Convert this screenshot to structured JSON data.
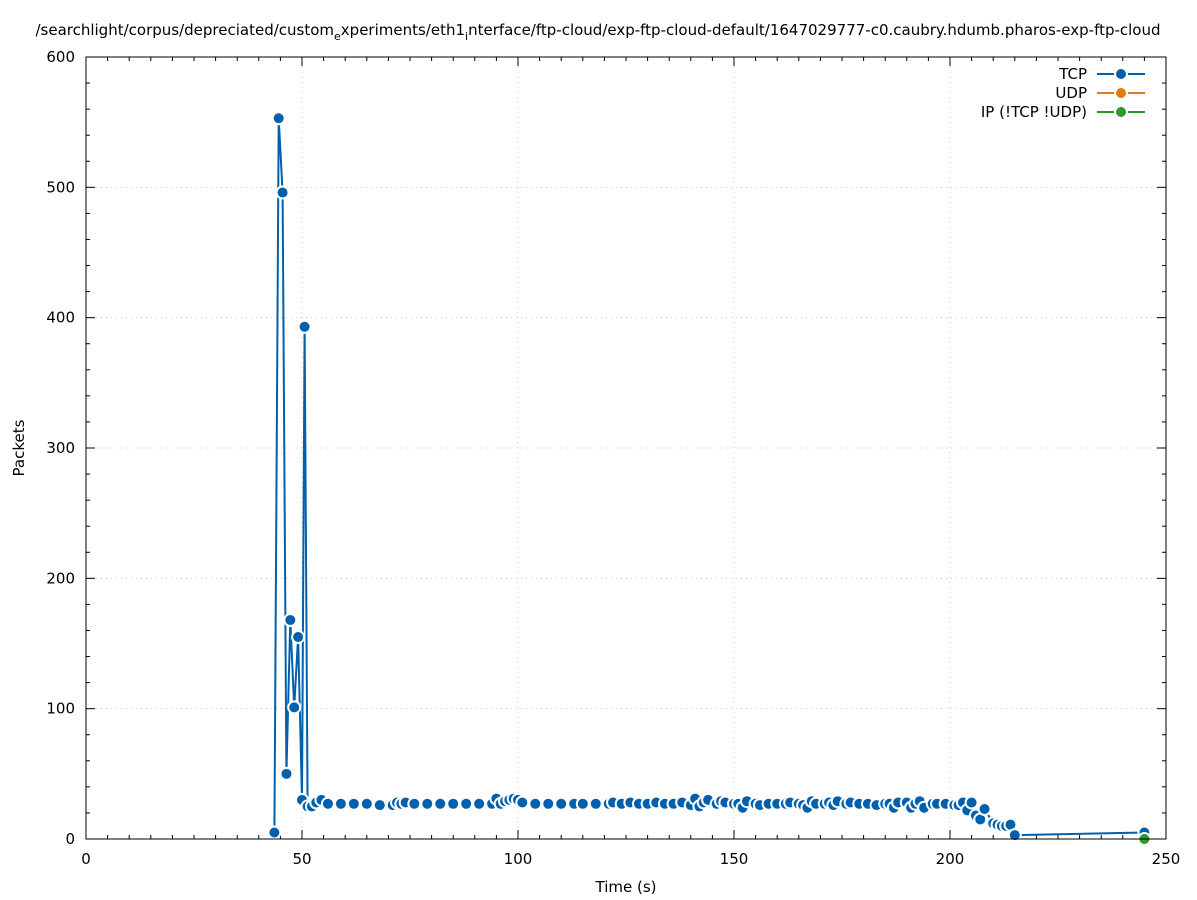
{
  "chart_data": {
    "type": "line",
    "title": "/searchlight/corpus/depreciated/custom_experiments/eth1_interface/ftp-cloud/exp-ftp-cloud-default/1647029777-c0.caubry.hdumb.pharos-exp-ftp-cloud",
    "title_parts": {
      "p1": "/searchlight/corpus/depreciated/custom",
      "s1": "e",
      "p2": "xperiments/eth1",
      "s2": "i",
      "p3": "nterface/ftp-cloud/exp-ftp-cloud-default/1647029777-c0.caubry.hdumb.pharos-exp-ftp-cloud"
    },
    "xlabel": "Time (s)",
    "ylabel": "Packets",
    "xlim": [
      0,
      250
    ],
    "ylim": [
      0,
      600
    ],
    "xticks": [
      "0",
      "50",
      "100",
      "150",
      "200",
      "250"
    ],
    "yticks": [
      "0",
      "100",
      "200",
      "300",
      "400",
      "500",
      "600"
    ],
    "grid": true,
    "legend_position": "top-right",
    "series": [
      {
        "name": "TCP",
        "color": "#0060ad",
        "points": [
          [
            43.6,
            5
          ],
          [
            44.6,
            553
          ],
          [
            45.5,
            496
          ],
          [
            46.4,
            50
          ],
          [
            47.3,
            168
          ],
          [
            48.2,
            101
          ],
          [
            49.1,
            155
          ],
          [
            50.0,
            30
          ],
          [
            50.6,
            393
          ],
          [
            51.3,
            25
          ],
          [
            52.3,
            25
          ],
          [
            53.3,
            28
          ],
          [
            54.5,
            30
          ],
          [
            56,
            27
          ],
          [
            59,
            27
          ],
          [
            62,
            27
          ],
          [
            65,
            27
          ],
          [
            68,
            26
          ],
          [
            71,
            26
          ],
          [
            72,
            28
          ],
          [
            73,
            27
          ],
          [
            74,
            28
          ],
          [
            76,
            27
          ],
          [
            79,
            27
          ],
          [
            82,
            27
          ],
          [
            85,
            27
          ],
          [
            88,
            27
          ],
          [
            91,
            27
          ],
          [
            94,
            27
          ],
          [
            95,
            31
          ],
          [
            96,
            27
          ],
          [
            97,
            29
          ],
          [
            98,
            30
          ],
          [
            99,
            31
          ],
          [
            100,
            30
          ],
          [
            101,
            28
          ],
          [
            104,
            27
          ],
          [
            107,
            27
          ],
          [
            110,
            27
          ],
          [
            113,
            27
          ],
          [
            115,
            27
          ],
          [
            118,
            27
          ],
          [
            121,
            27
          ],
          [
            122,
            28
          ],
          [
            124,
            27
          ],
          [
            126,
            28
          ],
          [
            128,
            27
          ],
          [
            130,
            27
          ],
          [
            132,
            28
          ],
          [
            134,
            27
          ],
          [
            136,
            27
          ],
          [
            138,
            28
          ],
          [
            140,
            26
          ],
          [
            141,
            31
          ],
          [
            142,
            25
          ],
          [
            143,
            28
          ],
          [
            144,
            30
          ],
          [
            146,
            27
          ],
          [
            147,
            29
          ],
          [
            148,
            28
          ],
          [
            150,
            27
          ],
          [
            151,
            27
          ],
          [
            152,
            24
          ],
          [
            153,
            29
          ],
          [
            155,
            27
          ],
          [
            156,
            26
          ],
          [
            158,
            27
          ],
          [
            160,
            27
          ],
          [
            162,
            27
          ],
          [
            163,
            28
          ],
          [
            165,
            27
          ],
          [
            166,
            26
          ],
          [
            167,
            24
          ],
          [
            168,
            29
          ],
          [
            169,
            27
          ],
          [
            171,
            27
          ],
          [
            172,
            28
          ],
          [
            173,
            26
          ],
          [
            174,
            29
          ],
          [
            176,
            27
          ],
          [
            177,
            28
          ],
          [
            179,
            27
          ],
          [
            181,
            27
          ],
          [
            183,
            26
          ],
          [
            185,
            27
          ],
          [
            186,
            27
          ],
          [
            187,
            24
          ],
          [
            188,
            28
          ],
          [
            190,
            28
          ],
          [
            191,
            24
          ],
          [
            192,
            27
          ],
          [
            193,
            29
          ],
          [
            194,
            24
          ],
          [
            196,
            27
          ],
          [
            197,
            27
          ],
          [
            199,
            27
          ],
          [
            201,
            26
          ],
          [
            202,
            26
          ],
          [
            203,
            28
          ],
          [
            204,
            22
          ],
          [
            205,
            28
          ],
          [
            206,
            18
          ],
          [
            207,
            15
          ],
          [
            208,
            23
          ],
          [
            210,
            12
          ],
          [
            211,
            11
          ],
          [
            212,
            10
          ],
          [
            213,
            10
          ],
          [
            214,
            11
          ],
          [
            215,
            3
          ],
          [
            245,
            5
          ]
        ]
      },
      {
        "name": "UDP",
        "color": "#e8790a",
        "points": []
      },
      {
        "name": "IP (!TCP  !UDP)",
        "color": "#2a9a30",
        "points": [
          [
            245,
            0
          ]
        ]
      }
    ]
  }
}
